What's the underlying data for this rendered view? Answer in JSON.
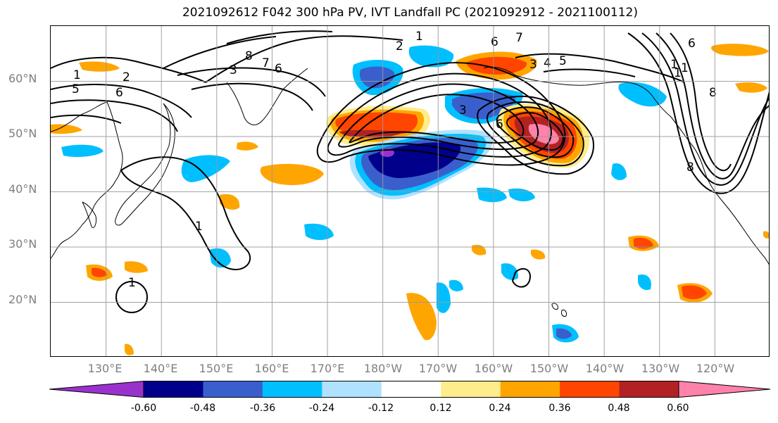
{
  "title": "2021092612 F042 300 hPa PV, IVT Landfall PC (2021092912 - 2021100112)",
  "latitude_labels": [
    "60°N",
    "50°N",
    "40°N",
    "30°N",
    "20°N"
  ],
  "longitude_labels": [
    "130°E",
    "140°E",
    "150°E",
    "160°E",
    "170°E",
    "180°W",
    "170°W",
    "160°W",
    "150°W",
    "140°W",
    "130°W",
    "120°W"
  ],
  "map": {
    "extent": {
      "lon_min": 120,
      "lon_max": 250,
      "lat_min": 10,
      "lat_max": 70
    },
    "gridlines_lon": [
      130,
      140,
      150,
      160,
      170,
      180,
      190,
      200,
      210,
      220,
      230,
      240
    ],
    "gridlines_lat": [
      20,
      30,
      40,
      50,
      60
    ],
    "grid": true,
    "fill_field": "PV regression (shaded)",
    "contour_field": "IVT (black contours)",
    "contour_labels": [
      "1",
      "2",
      "3",
      "4",
      "5",
      "6",
      "7",
      "8"
    ]
  },
  "colorbar": {
    "levels": [
      "-0.60",
      "-0.48",
      "-0.36",
      "-0.24",
      "-0.12",
      "0.12",
      "0.24",
      "0.36",
      "0.48",
      "0.60"
    ],
    "colors": [
      "#9932cc",
      "#00008b",
      "#3a5fcd",
      "#00bfff",
      "#b0e2ff",
      "#ffffff",
      "#ffec8b",
      "#ffa500",
      "#ff4500",
      "#b22222",
      "#ff82ab"
    ]
  }
}
